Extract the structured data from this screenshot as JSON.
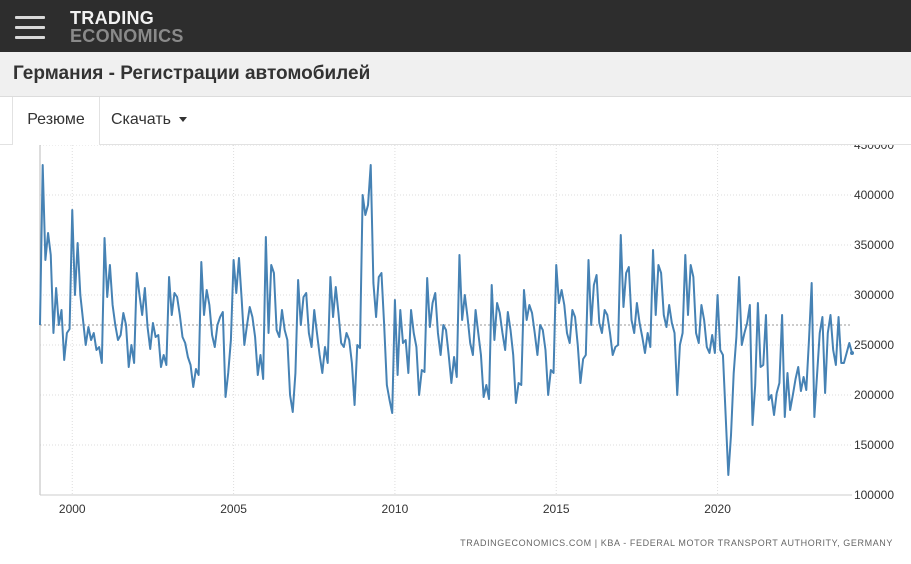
{
  "header": {
    "logo_line1": "TRADING",
    "logo_line2": "ECONOMICS"
  },
  "page": {
    "title": "Германия - Регистрации автомобилей"
  },
  "tabs": {
    "summary": "Резюме",
    "download": "Скачать"
  },
  "source_text": "TRADINGECONOMICS.COM  |  KBA - FEDERAL MOTOR TRANSPORT AUTHORITY, GERMANY",
  "colors": {
    "line": "#4682b4",
    "grid": "#dddddd",
    "average": "#999999",
    "topbar": "#2d2d2d"
  },
  "chart_data": {
    "type": "line",
    "title": "",
    "xlabel": "",
    "ylabel": "",
    "xlim": [
      "1999-01",
      "2024-03"
    ],
    "ylim": [
      100000,
      450000
    ],
    "yticks": [
      100000,
      150000,
      200000,
      250000,
      300000,
      350000,
      400000,
      450000
    ],
    "ytick_labels": [
      "100000",
      "150000",
      "200000",
      "250000",
      "300000",
      "350000",
      "400000",
      "450000"
    ],
    "xtick_labels": [
      "2000",
      "2005",
      "2010",
      "2015",
      "2020"
    ],
    "grid": true,
    "legend": "none",
    "average_line": 270000,
    "last_label": "242000",
    "start": "1999-01",
    "frequency": "monthly",
    "series": [
      {
        "values": [
          270000,
          430000,
          335000,
          362000,
          340000,
          262000,
          307000,
          270000,
          285000,
          235000,
          262000,
          266000,
          385000,
          300000,
          352000,
          300000,
          275000,
          250000,
          268000,
          255000,
          262000,
          245000,
          248000,
          232000,
          357000,
          298000,
          330000,
          290000,
          270000,
          255000,
          260000,
          282000,
          270000,
          228000,
          250000,
          232000,
          322000,
          300000,
          280000,
          307000,
          268000,
          246000,
          272000,
          258000,
          260000,
          228000,
          240000,
          230000,
          318000,
          280000,
          302000,
          298000,
          280000,
          258000,
          252000,
          238000,
          230000,
          208000,
          226000,
          220000,
          333000,
          280000,
          305000,
          290000,
          260000,
          248000,
          270000,
          278000,
          283000,
          198000,
          222000,
          255000,
          335000,
          302000,
          337000,
          296000,
          250000,
          270000,
          288000,
          278000,
          258000,
          220000,
          240000,
          216000,
          358000,
          262000,
          330000,
          322000,
          265000,
          258000,
          285000,
          265000,
          255000,
          200000,
          183000,
          222000,
          315000,
          270000,
          298000,
          302000,
          262000,
          248000,
          285000,
          262000,
          240000,
          222000,
          248000,
          232000,
          318000,
          278000,
          308000,
          282000,
          252000,
          248000,
          262000,
          255000,
          232000,
          190000,
          250000,
          247000,
          400000,
          380000,
          390000,
          430000,
          312000,
          278000,
          318000,
          322000,
          270000,
          210000,
          195000,
          182000,
          295000,
          220000,
          285000,
          252000,
          255000,
          222000,
          285000,
          262000,
          248000,
          200000,
          225000,
          223000,
          317000,
          268000,
          292000,
          302000,
          262000,
          240000,
          270000,
          265000,
          240000,
          212000,
          238000,
          218000,
          340000,
          275000,
          300000,
          278000,
          252000,
          240000,
          285000,
          262000,
          240000,
          198000,
          210000,
          196000,
          310000,
          255000,
          292000,
          282000,
          262000,
          245000,
          283000,
          265000,
          240000,
          192000,
          212000,
          210000,
          305000,
          275000,
          290000,
          282000,
          262000,
          240000,
          270000,
          265000,
          245000,
          200000,
          225000,
          222000,
          330000,
          292000,
          305000,
          290000,
          262000,
          252000,
          285000,
          278000,
          250000,
          212000,
          236000,
          240000,
          335000,
          270000,
          310000,
          320000,
          272000,
          262000,
          285000,
          280000,
          262000,
          240000,
          248000,
          250000,
          360000,
          288000,
          322000,
          328000,
          275000,
          262000,
          292000,
          272000,
          258000,
          242000,
          262000,
          248000,
          345000,
          280000,
          330000,
          322000,
          280000,
          268000,
          290000,
          272000,
          262000,
          200000,
          250000,
          262000,
          340000,
          280000,
          330000,
          318000,
          262000,
          252000,
          290000,
          275000,
          248000,
          242000,
          260000,
          242000,
          300000,
          245000,
          240000,
          180000,
          120000,
          160000,
          222000,
          258000,
          318000,
          250000,
          262000,
          272000,
          290000,
          170000,
          210000,
          292000,
          228000,
          230000,
          280000,
          195000,
          200000,
          180000,
          202000,
          212000,
          280000,
          178000,
          222000,
          185000,
          200000,
          216000,
          228000,
          204000,
          218000,
          205000,
          255000,
          312000,
          178000,
          220000,
          262000,
          278000,
          202000,
          262000,
          280000,
          245000,
          230000,
          278000,
          232000,
          232000,
          242000,
          252000,
          242000
        ]
      }
    ]
  }
}
